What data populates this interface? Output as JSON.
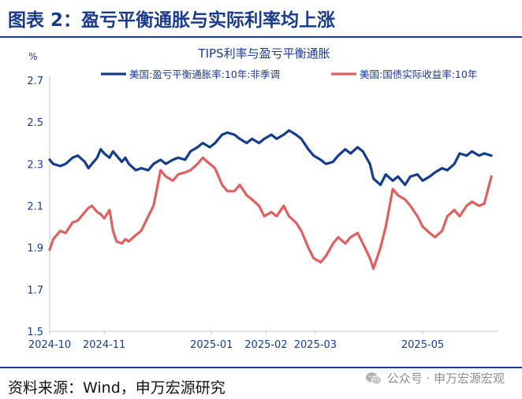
{
  "figure_title": "图表 2：盈亏平衡通胀与实际利率均上涨",
  "source_text": "资料来源：Wind，申万宏源研究",
  "watermark": {
    "icon": "wechat-icon",
    "text": "公众号 · 申万宏源宏观"
  },
  "colors": {
    "brand": "#1a3a8c",
    "series1": "#143d8c",
    "series2": "#e06060",
    "axis_text": "#1a3a8c"
  },
  "chart_data": {
    "type": "line",
    "title": "TIPS利率与盈亏平衡通胀",
    "ylabel": "%",
    "ylim": [
      1.5,
      2.7
    ],
    "yticks": [
      "1.5",
      "1.7",
      "1.9",
      "2.1",
      "2.3",
      "2.5",
      "2.7"
    ],
    "xlim": [
      "2024-10-01",
      "2025-06-13"
    ],
    "xticks": [
      {
        "label": "2024-10",
        "date": "2024-10-01"
      },
      {
        "label": "2024-11",
        "date": "2024-11-01"
      },
      {
        "label": "2025-01",
        "date": "2025-01-01"
      },
      {
        "label": "2025-02",
        "date": "2025-02-01"
      },
      {
        "label": "2025-03",
        "date": "2025-03-01"
      },
      {
        "label": "2025-05",
        "date": "2025-05-01"
      }
    ],
    "grid": false,
    "legend": "top",
    "series": [
      {
        "name": "美国:盈亏平衡通胀率:10年:非季调",
        "color": "#143d8c",
        "points": [
          [
            "2024-10-01",
            2.32
          ],
          [
            "2024-10-03",
            2.3
          ],
          [
            "2024-10-07",
            2.29
          ],
          [
            "2024-10-10",
            2.3
          ],
          [
            "2024-10-14",
            2.33
          ],
          [
            "2024-10-17",
            2.34
          ],
          [
            "2024-10-21",
            2.31
          ],
          [
            "2024-10-23",
            2.28
          ],
          [
            "2024-10-25",
            2.3
          ],
          [
            "2024-10-28",
            2.33
          ],
          [
            "2024-10-30",
            2.37
          ],
          [
            "2024-11-01",
            2.35
          ],
          [
            "2024-11-04",
            2.33
          ],
          [
            "2024-11-06",
            2.36
          ],
          [
            "2024-11-08",
            2.34
          ],
          [
            "2024-11-11",
            2.31
          ],
          [
            "2024-11-13",
            2.33
          ],
          [
            "2024-11-15",
            2.3
          ],
          [
            "2024-11-19",
            2.27
          ],
          [
            "2024-11-22",
            2.28
          ],
          [
            "2024-11-26",
            2.27
          ],
          [
            "2024-11-29",
            2.3
          ],
          [
            "2024-12-03",
            2.32
          ],
          [
            "2024-12-06",
            2.3
          ],
          [
            "2024-12-10",
            2.32
          ],
          [
            "2024-12-13",
            2.33
          ],
          [
            "2024-12-17",
            2.32
          ],
          [
            "2024-12-20",
            2.36
          ],
          [
            "2024-12-24",
            2.38
          ],
          [
            "2024-12-27",
            2.4
          ],
          [
            "2024-12-31",
            2.38
          ],
          [
            "2025-01-03",
            2.4
          ],
          [
            "2025-01-07",
            2.44
          ],
          [
            "2025-01-10",
            2.45
          ],
          [
            "2025-01-14",
            2.44
          ],
          [
            "2025-01-17",
            2.42
          ],
          [
            "2025-01-21",
            2.4
          ],
          [
            "2025-01-24",
            2.42
          ],
          [
            "2025-01-28",
            2.4
          ],
          [
            "2025-01-31",
            2.42
          ],
          [
            "2025-02-04",
            2.44
          ],
          [
            "2025-02-07",
            2.42
          ],
          [
            "2025-02-11",
            2.44
          ],
          [
            "2025-02-14",
            2.46
          ],
          [
            "2025-02-18",
            2.44
          ],
          [
            "2025-02-21",
            2.42
          ],
          [
            "2025-02-25",
            2.37
          ],
          [
            "2025-02-28",
            2.34
          ],
          [
            "2025-03-04",
            2.32
          ],
          [
            "2025-03-07",
            2.3
          ],
          [
            "2025-03-11",
            2.31
          ],
          [
            "2025-03-14",
            2.34
          ],
          [
            "2025-03-18",
            2.37
          ],
          [
            "2025-03-21",
            2.35
          ],
          [
            "2025-03-25",
            2.38
          ],
          [
            "2025-03-28",
            2.36
          ],
          [
            "2025-04-01",
            2.3
          ],
          [
            "2025-04-03",
            2.23
          ],
          [
            "2025-04-07",
            2.2
          ],
          [
            "2025-04-10",
            2.25
          ],
          [
            "2025-04-14",
            2.22
          ],
          [
            "2025-04-17",
            2.24
          ],
          [
            "2025-04-21",
            2.2
          ],
          [
            "2025-04-24",
            2.24
          ],
          [
            "2025-04-28",
            2.25
          ],
          [
            "2025-05-01",
            2.22
          ],
          [
            "2025-05-05",
            2.24
          ],
          [
            "2025-05-08",
            2.26
          ],
          [
            "2025-05-12",
            2.28
          ],
          [
            "2025-05-15",
            2.27
          ],
          [
            "2025-05-19",
            2.3
          ],
          [
            "2025-05-22",
            2.35
          ],
          [
            "2025-05-26",
            2.34
          ],
          [
            "2025-05-29",
            2.36
          ],
          [
            "2025-06-02",
            2.34
          ],
          [
            "2025-06-05",
            2.35
          ],
          [
            "2025-06-09",
            2.34
          ]
        ]
      },
      {
        "name": "美国:国债实际收益率:10年",
        "color": "#e06060",
        "points": [
          [
            "2024-10-01",
            1.89
          ],
          [
            "2024-10-03",
            1.94
          ],
          [
            "2024-10-07",
            1.98
          ],
          [
            "2024-10-10",
            1.97
          ],
          [
            "2024-10-14",
            2.02
          ],
          [
            "2024-10-17",
            2.03
          ],
          [
            "2024-10-21",
            2.07
          ],
          [
            "2024-10-23",
            2.09
          ],
          [
            "2024-10-25",
            2.1
          ],
          [
            "2024-10-28",
            2.07
          ],
          [
            "2024-10-30",
            2.06
          ],
          [
            "2024-11-01",
            2.04
          ],
          [
            "2024-11-04",
            2.08
          ],
          [
            "2024-11-06",
            1.98
          ],
          [
            "2024-11-08",
            1.93
          ],
          [
            "2024-11-11",
            1.92
          ],
          [
            "2024-11-13",
            1.94
          ],
          [
            "2024-11-15",
            1.93
          ],
          [
            "2024-11-19",
            1.96
          ],
          [
            "2024-11-22",
            1.98
          ],
          [
            "2024-11-26",
            2.05
          ],
          [
            "2024-11-29",
            2.1
          ],
          [
            "2024-12-03",
            2.27
          ],
          [
            "2024-12-06",
            2.24
          ],
          [
            "2024-12-10",
            2.22
          ],
          [
            "2024-12-13",
            2.25
          ],
          [
            "2024-12-17",
            2.26
          ],
          [
            "2024-12-20",
            2.27
          ],
          [
            "2024-12-24",
            2.3
          ],
          [
            "2024-12-27",
            2.33
          ],
          [
            "2024-12-31",
            2.3
          ],
          [
            "2025-01-03",
            2.28
          ],
          [
            "2025-01-07",
            2.2
          ],
          [
            "2025-01-10",
            2.17
          ],
          [
            "2025-01-14",
            2.17
          ],
          [
            "2025-01-17",
            2.2
          ],
          [
            "2025-01-21",
            2.15
          ],
          [
            "2025-01-24",
            2.13
          ],
          [
            "2025-01-28",
            2.1
          ],
          [
            "2025-01-31",
            2.05
          ],
          [
            "2025-02-04",
            2.07
          ],
          [
            "2025-02-07",
            2.05
          ],
          [
            "2025-02-11",
            2.1
          ],
          [
            "2025-02-14",
            2.05
          ],
          [
            "2025-02-18",
            2.02
          ],
          [
            "2025-02-21",
            1.98
          ],
          [
            "2025-02-25",
            1.9
          ],
          [
            "2025-02-28",
            1.85
          ],
          [
            "2025-03-04",
            1.83
          ],
          [
            "2025-03-07",
            1.86
          ],
          [
            "2025-03-11",
            1.92
          ],
          [
            "2025-03-14",
            1.95
          ],
          [
            "2025-03-18",
            1.92
          ],
          [
            "2025-03-21",
            1.95
          ],
          [
            "2025-03-25",
            1.97
          ],
          [
            "2025-03-28",
            1.92
          ],
          [
            "2025-04-01",
            1.85
          ],
          [
            "2025-04-03",
            1.8
          ],
          [
            "2025-04-07",
            1.9
          ],
          [
            "2025-04-10",
            2.0
          ],
          [
            "2025-04-14",
            2.18
          ],
          [
            "2025-04-17",
            2.15
          ],
          [
            "2025-04-21",
            2.13
          ],
          [
            "2025-04-24",
            2.1
          ],
          [
            "2025-04-28",
            2.05
          ],
          [
            "2025-05-01",
            2.0
          ],
          [
            "2025-05-05",
            1.97
          ],
          [
            "2025-05-08",
            1.95
          ],
          [
            "2025-05-12",
            1.98
          ],
          [
            "2025-05-15",
            2.05
          ],
          [
            "2025-05-19",
            2.08
          ],
          [
            "2025-05-22",
            2.05
          ],
          [
            "2025-05-26",
            2.1
          ],
          [
            "2025-05-29",
            2.12
          ],
          [
            "2025-06-02",
            2.1
          ],
          [
            "2025-06-05",
            2.11
          ],
          [
            "2025-06-09",
            2.24
          ]
        ]
      }
    ]
  }
}
